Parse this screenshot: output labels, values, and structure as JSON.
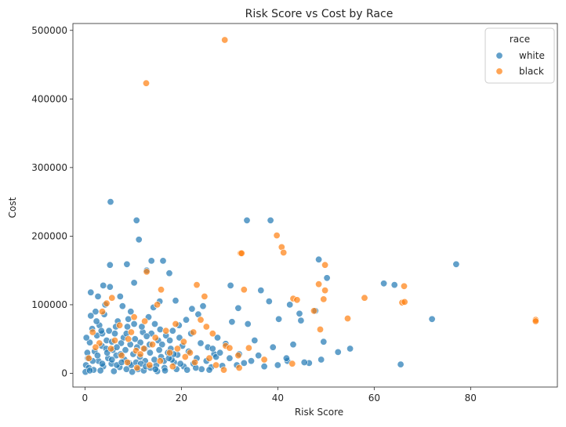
{
  "chart_data": {
    "type": "scatter",
    "title": "Risk Score vs Cost by Race",
    "xlabel": "Risk Score",
    "ylabel": "Cost",
    "xlim": [
      -2.5,
      98
    ],
    "ylim": [
      -20000,
      510000
    ],
    "xticks": [
      0,
      20,
      40,
      60,
      80
    ],
    "yticks": [
      0,
      100000,
      200000,
      300000,
      400000,
      500000
    ],
    "xtick_labels": [
      "0",
      "20",
      "40",
      "60",
      "80"
    ],
    "ytick_labels": [
      "0",
      "100000",
      "200000",
      "300000",
      "400000",
      "500000"
    ],
    "grid": false,
    "legend": {
      "title": "race",
      "placement": "top-right"
    },
    "series": [
      {
        "name": "white",
        "color": "#1f77b4",
        "points": [
          [
            5.3,
            250000
          ],
          [
            10.7,
            223000
          ],
          [
            11.2,
            195000
          ],
          [
            33.6,
            223000
          ],
          [
            38.5,
            223000
          ],
          [
            5.2,
            158000
          ],
          [
            8.7,
            159000
          ],
          [
            13.8,
            164000
          ],
          [
            16.2,
            164000
          ],
          [
            17.5,
            146000
          ],
          [
            12.8,
            150000
          ],
          [
            3.8,
            128000
          ],
          [
            5.2,
            126000
          ],
          [
            10.2,
            132000
          ],
          [
            14.2,
            96000
          ],
          [
            1.2,
            118000
          ],
          [
            2.7,
            112000
          ],
          [
            7.3,
            112000
          ],
          [
            15.5,
            105000
          ],
          [
            18.8,
            106000
          ],
          [
            22.2,
            94000
          ],
          [
            23.5,
            86000
          ],
          [
            24.5,
            98000
          ],
          [
            30.2,
            128000
          ],
          [
            31.8,
            95000
          ],
          [
            33.8,
            72000
          ],
          [
            36.5,
            121000
          ],
          [
            38.2,
            105000
          ],
          [
            40.2,
            79000
          ],
          [
            42.5,
            100000
          ],
          [
            44.5,
            87000
          ],
          [
            44.8,
            77000
          ],
          [
            47.8,
            91000
          ],
          [
            48.5,
            166000
          ],
          [
            49.5,
            46000
          ],
          [
            50.2,
            139000
          ],
          [
            52.5,
            31000
          ],
          [
            55.0,
            36000
          ],
          [
            62.0,
            131000
          ],
          [
            64.2,
            129000
          ],
          [
            65.5,
            13000
          ],
          [
            72.0,
            79000
          ],
          [
            77.0,
            159000
          ],
          [
            42.0,
            18000
          ],
          [
            46.5,
            15000
          ],
          [
            43.2,
            42000
          ],
          [
            41.8,
            22000
          ],
          [
            39.0,
            38000
          ],
          [
            35.2,
            48000
          ],
          [
            30.5,
            75000
          ],
          [
            29.2,
            43000
          ],
          [
            28.5,
            11000
          ],
          [
            31.5,
            12000
          ],
          [
            33.0,
            15000
          ],
          [
            37.2,
            10000
          ],
          [
            25.5,
            38000
          ],
          [
            26.8,
            28000
          ],
          [
            27.5,
            52000
          ],
          [
            21.0,
            78000
          ],
          [
            19.5,
            70000
          ],
          [
            18.2,
            62000
          ],
          [
            16.8,
            55000
          ],
          [
            15.2,
            48000
          ],
          [
            14.5,
            72000
          ],
          [
            13.2,
            82000
          ],
          [
            12.0,
            60000
          ],
          [
            11.5,
            45000
          ],
          [
            10.8,
            38000
          ],
          [
            9.5,
            90000
          ],
          [
            8.8,
            68000
          ],
          [
            8.0,
            52000
          ],
          [
            7.5,
            44000
          ],
          [
            6.8,
            76000
          ],
          [
            6.2,
            58000
          ],
          [
            5.8,
            34000
          ],
          [
            5.0,
            62000
          ],
          [
            4.5,
            48000
          ],
          [
            4.0,
            86000
          ],
          [
            3.5,
            40000
          ],
          [
            3.0,
            70000
          ],
          [
            2.5,
            55000
          ],
          [
            2.0,
            32000
          ],
          [
            1.5,
            65000
          ],
          [
            1.0,
            45000
          ],
          [
            0.5,
            30000
          ],
          [
            0.2,
            12000
          ],
          [
            0.8,
            8000
          ],
          [
            1.8,
            5000
          ],
          [
            2.8,
            18000
          ],
          [
            3.8,
            10000
          ],
          [
            4.8,
            22000
          ],
          [
            5.5,
            14000
          ],
          [
            6.5,
            26000
          ],
          [
            7.2,
            9000
          ],
          [
            8.2,
            20000
          ],
          [
            9.2,
            15000
          ],
          [
            10.0,
            28000
          ],
          [
            11.0,
            6000
          ],
          [
            12.5,
            18000
          ],
          [
            13.5,
            30000
          ],
          [
            14.8,
            12000
          ],
          [
            15.8,
            24000
          ],
          [
            16.5,
            8000
          ],
          [
            17.8,
            36000
          ],
          [
            18.5,
            16000
          ],
          [
            19.2,
            27000
          ],
          [
            20.5,
            10000
          ],
          [
            21.5,
            32000
          ],
          [
            22.5,
            14000
          ],
          [
            23.2,
            22000
          ],
          [
            24.2,
            6000
          ],
          [
            25.2,
            18000
          ],
          [
            26.2,
            9000
          ],
          [
            27.2,
            24000
          ],
          [
            3.2,
            4000
          ],
          [
            6.0,
            3000
          ],
          [
            9.8,
            2000
          ],
          [
            12.2,
            4000
          ],
          [
            15.0,
            3000
          ],
          [
            0.1,
            2000
          ],
          [
            2.2,
            90000
          ],
          [
            4.2,
            100000
          ],
          [
            7.8,
            98000
          ],
          [
            9.0,
            79000
          ],
          [
            11.8,
            68000
          ],
          [
            13.8,
            58000
          ],
          [
            16.0,
            42000
          ],
          [
            17.2,
            30000
          ],
          [
            18.0,
            20000
          ],
          [
            19.8,
            14000
          ],
          [
            20.2,
            40000
          ],
          [
            0.3,
            52000
          ],
          [
            1.2,
            84000
          ],
          [
            2.4,
            76000
          ],
          [
            3.6,
            58000
          ],
          [
            4.4,
            36000
          ],
          [
            5.6,
            46000
          ],
          [
            6.6,
            38000
          ],
          [
            7.4,
            28000
          ],
          [
            8.4,
            34000
          ],
          [
            9.4,
            42000
          ],
          [
            10.4,
            50000
          ],
          [
            11.4,
            24000
          ],
          [
            12.4,
            36000
          ],
          [
            13.4,
            42000
          ],
          [
            14.4,
            20000
          ],
          [
            15.4,
            34000
          ],
          [
            16.4,
            18000
          ],
          [
            17.4,
            22000
          ],
          [
            18.4,
            28000
          ],
          [
            0.6,
            22000
          ],
          [
            1.6,
            18000
          ],
          [
            2.6,
            26000
          ],
          [
            3.6,
            14000
          ],
          [
            4.6,
            30000
          ],
          [
            5.6,
            20000
          ],
          [
            6.6,
            12000
          ],
          [
            7.6,
            16000
          ],
          [
            8.6,
            6000
          ],
          [
            9.6,
            12000
          ],
          [
            10.6,
            16000
          ],
          [
            11.6,
            14000
          ],
          [
            12.6,
            10000
          ],
          [
            13.6,
            8000
          ],
          [
            14.6,
            6000
          ],
          [
            16.6,
            4000
          ],
          [
            19.0,
            6000
          ],
          [
            21.2,
            5000
          ],
          [
            23.0,
            8000
          ],
          [
            25.8,
            5000
          ],
          [
            3.4,
            62000
          ],
          [
            6.4,
            68000
          ],
          [
            8.6,
            58000
          ],
          [
            10.2,
            72000
          ],
          [
            12.8,
            54000
          ],
          [
            15.6,
            64000
          ],
          [
            17.6,
            48000
          ],
          [
            19.6,
            52000
          ],
          [
            22.0,
            58000
          ],
          [
            24.0,
            44000
          ],
          [
            26.5,
            36000
          ],
          [
            28.0,
            30000
          ],
          [
            30.0,
            22000
          ],
          [
            32.0,
            28000
          ],
          [
            34.5,
            18000
          ],
          [
            36.0,
            26000
          ],
          [
            40.0,
            12000
          ],
          [
            45.5,
            16000
          ],
          [
            49.0,
            20000
          ],
          [
            1.0,
            4000
          ]
        ]
      },
      {
        "name": "black",
        "color": "#ff7f0e",
        "points": [
          [
            29.0,
            486000
          ],
          [
            12.7,
            423000
          ],
          [
            39.8,
            201000
          ],
          [
            40.8,
            184000
          ],
          [
            41.2,
            176000
          ],
          [
            32.3,
            175000
          ],
          [
            32.5,
            175000
          ],
          [
            49.8,
            158000
          ],
          [
            12.8,
            148000
          ],
          [
            48.5,
            130000
          ],
          [
            23.2,
            129000
          ],
          [
            49.8,
            121000
          ],
          [
            33.0,
            122000
          ],
          [
            49.5,
            108000
          ],
          [
            43.2,
            109000
          ],
          [
            44.0,
            107000
          ],
          [
            47.5,
            91000
          ],
          [
            58.0,
            110000
          ],
          [
            65.8,
            103000
          ],
          [
            66.3,
            104000
          ],
          [
            66.2,
            127000
          ],
          [
            54.5,
            80000
          ],
          [
            48.8,
            64000
          ],
          [
            93.5,
            78000
          ],
          [
            93.5,
            76000
          ],
          [
            24.8,
            112000
          ],
          [
            15.8,
            122000
          ],
          [
            15.0,
            100000
          ],
          [
            4.5,
            102000
          ],
          [
            10.2,
            82000
          ],
          [
            24.0,
            78000
          ],
          [
            25.2,
            68000
          ],
          [
            26.5,
            58000
          ],
          [
            22.5,
            60000
          ],
          [
            20.5,
            46000
          ],
          [
            29.2,
            40000
          ],
          [
            30.0,
            37000
          ],
          [
            34.0,
            37000
          ],
          [
            37.2,
            20000
          ],
          [
            31.8,
            26000
          ],
          [
            32.0,
            8000
          ],
          [
            28.8,
            5000
          ],
          [
            43.0,
            14000
          ],
          [
            21.8,
            30000
          ],
          [
            19.2,
            36000
          ],
          [
            17.6,
            30000
          ],
          [
            14.0,
            42000
          ],
          [
            12.2,
            36000
          ],
          [
            10.6,
            33000
          ],
          [
            9.0,
            50000
          ],
          [
            7.6,
            26000
          ],
          [
            6.2,
            48000
          ],
          [
            5.4,
            36000
          ],
          [
            3.6,
            90000
          ],
          [
            3.0,
            44000
          ],
          [
            2.2,
            38000
          ],
          [
            1.6,
            60000
          ],
          [
            0.8,
            22000
          ],
          [
            8.8,
            16000
          ],
          [
            10.8,
            8000
          ],
          [
            13.4,
            12000
          ],
          [
            15.6,
            18000
          ],
          [
            18.2,
            10000
          ],
          [
            20.8,
            24000
          ],
          [
            22.8,
            16000
          ],
          [
            25.8,
            22000
          ],
          [
            27.2,
            12000
          ],
          [
            11.5,
            28000
          ],
          [
            16.8,
            62000
          ],
          [
            18.8,
            72000
          ],
          [
            7.2,
            70000
          ],
          [
            5.6,
            110000
          ],
          [
            12.4,
            76000
          ],
          [
            14.6,
            52000
          ],
          [
            9.6,
            60000
          ]
        ]
      }
    ]
  }
}
